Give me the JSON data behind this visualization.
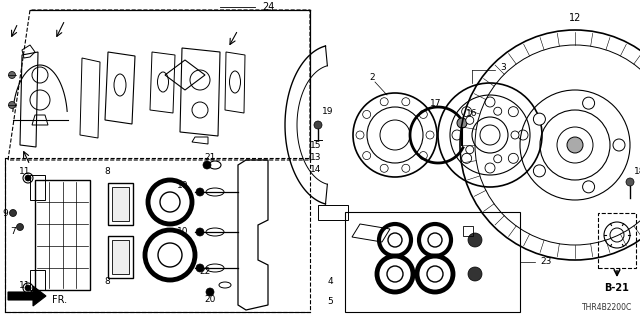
{
  "bg_color": "#ffffff",
  "line_color": "#000000",
  "diagram_code": "THR4B2200C",
  "figsize": [
    6.4,
    3.2
  ],
  "dpi": 100
}
